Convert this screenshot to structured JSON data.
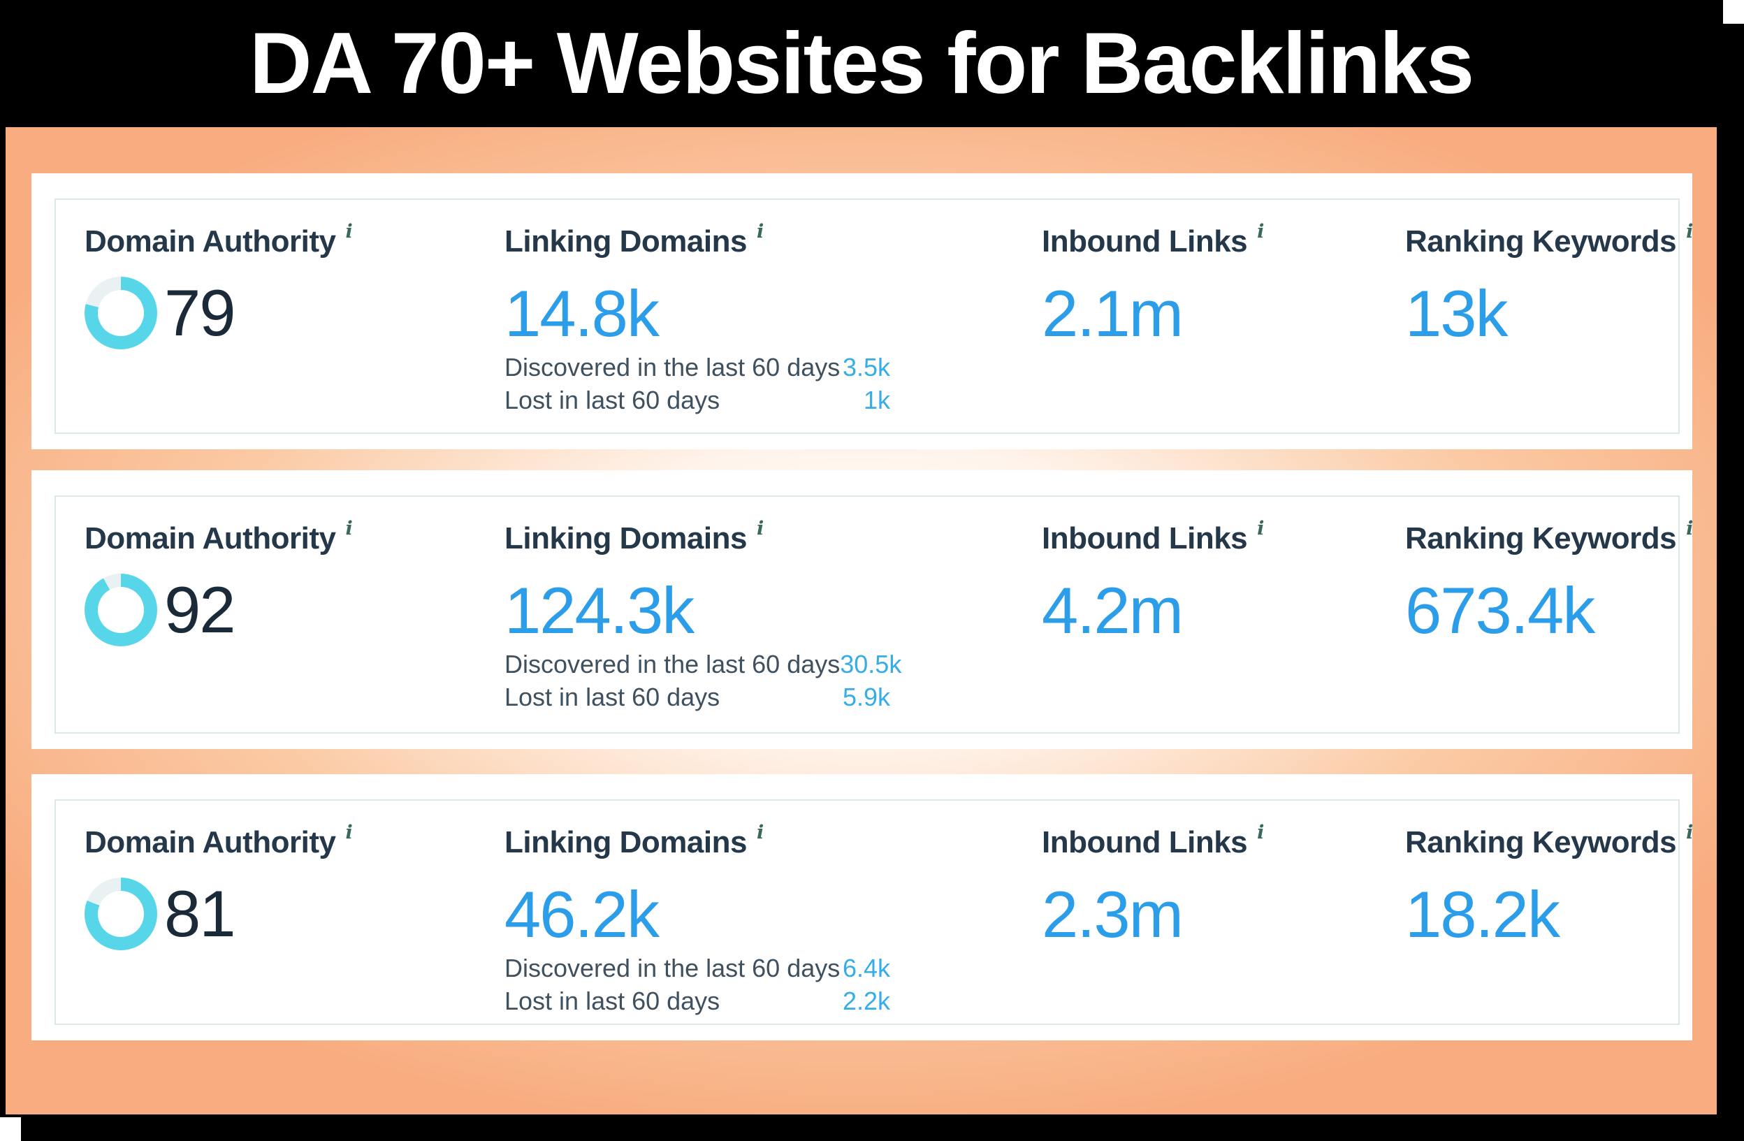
{
  "title": "DA 70+ Websites for Backlinks",
  "info_icon": "i",
  "colors": {
    "frame_black": "#000000",
    "panel_peach_edge": "#F8AC7F",
    "panel_peach_center": "#FFFFFF",
    "card_border": "#DCE9E4",
    "label_navy": "#24384A",
    "metric_value_blue": "#2C9EE9",
    "substat_value_blue": "#36ADE9",
    "substat_label_slate": "#3F505F",
    "ring_cyan": "#57D6E9",
    "ring_track": "#E9F1F2",
    "da_number_dark": "#1B2A39",
    "title_text": "#FFFFFF"
  },
  "cards": [
    {
      "domain_authority": {
        "label": "Domain Authority",
        "value": "79",
        "percent": 79
      },
      "linking_domains": {
        "label": "Linking Domains",
        "value": "14.8k",
        "rows": [
          {
            "label": "Discovered in the last 60 days",
            "value": "3.5k"
          },
          {
            "label": "Lost in last 60 days",
            "value": "1k"
          }
        ]
      },
      "inbound_links": {
        "label": "Inbound Links",
        "value": "2.1m"
      },
      "ranking_keywords": {
        "label": "Ranking Keywords",
        "value": "13k"
      }
    },
    {
      "domain_authority": {
        "label": "Domain Authority",
        "value": "92",
        "percent": 92
      },
      "linking_domains": {
        "label": "Linking Domains",
        "value": "124.3k",
        "rows": [
          {
            "label": "Discovered in the last 60 days",
            "value": "30.5k"
          },
          {
            "label": "Lost in last 60 days",
            "value": "5.9k"
          }
        ]
      },
      "inbound_links": {
        "label": "Inbound Links",
        "value": "4.2m"
      },
      "ranking_keywords": {
        "label": "Ranking Keywords",
        "value": "673.4k"
      }
    },
    {
      "domain_authority": {
        "label": "Domain Authority",
        "value": "81",
        "percent": 81
      },
      "linking_domains": {
        "label": "Linking Domains",
        "value": "46.2k",
        "rows": [
          {
            "label": "Discovered in the last 60 days",
            "value": "6.4k"
          },
          {
            "label": "Lost in last 60 days",
            "value": "2.2k"
          }
        ]
      },
      "inbound_links": {
        "label": "Inbound Links",
        "value": "2.3m"
      },
      "ranking_keywords": {
        "label": "Ranking Keywords",
        "value": "18.2k"
      }
    }
  ]
}
